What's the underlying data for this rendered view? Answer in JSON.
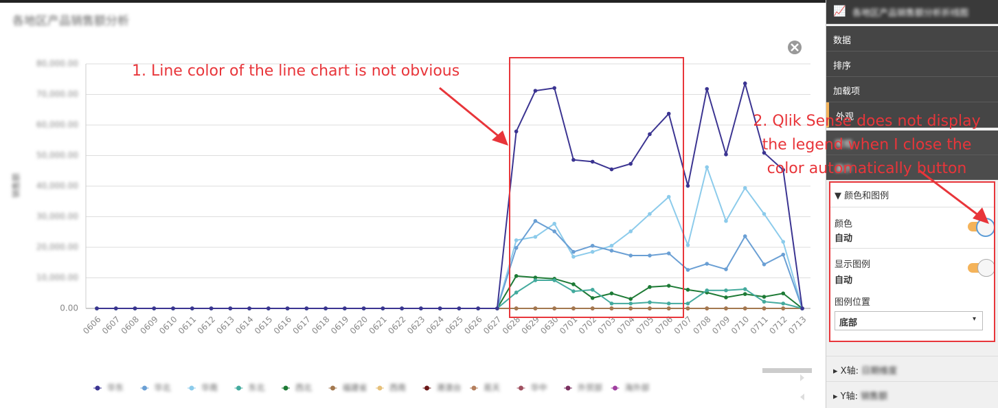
{
  "chart_data": {
    "type": "line",
    "title": "各地区产品销售额分析",
    "y_label": "销售额",
    "categories": [
      "0606",
      "0607",
      "0608",
      "0609",
      "0610",
      "0611",
      "0612",
      "0613",
      "0614",
      "0615",
      "0616",
      "0617",
      "0618",
      "0619",
      "0620",
      "0621",
      "0622",
      "0623",
      "0624",
      "0625",
      "0626",
      "0627",
      "0628",
      "0629",
      "0630",
      "0701",
      "0702",
      "0703",
      "0704",
      "0705",
      "0706",
      "0707",
      "0708",
      "0709",
      "0710",
      "0711",
      "0712",
      "0713"
    ],
    "ylim": [
      0,
      80000
    ],
    "yticks": [
      {
        "value": 0,
        "label": "0.00"
      },
      {
        "value": 10000,
        "label": "10,000.00"
      },
      {
        "value": 20000,
        "label": "20,000.00"
      },
      {
        "value": 30000,
        "label": "30,000.00"
      },
      {
        "value": 40000,
        "label": "40,000.00"
      },
      {
        "value": 50000,
        "label": "50,000.00"
      },
      {
        "value": 60000,
        "label": "60,000.00"
      },
      {
        "value": 70000,
        "label": "70,000.00"
      },
      {
        "value": 80000,
        "label": "80,000.00"
      }
    ],
    "grid": true,
    "series": [
      {
        "name": "华东",
        "color": "#3b3491",
        "values": [
          0,
          0,
          0,
          0,
          0,
          0,
          0,
          0,
          0,
          0,
          0,
          0,
          0,
          0,
          0,
          0,
          0,
          0,
          0,
          0,
          0,
          0,
          57900,
          71200,
          72100,
          48600,
          48000,
          45500,
          47300,
          57000,
          63700,
          40100,
          71800,
          50400,
          73600,
          50900,
          45300,
          0
        ]
      },
      {
        "name": "华北",
        "color": "#6a9fd4",
        "values": [
          0,
          0,
          0,
          0,
          0,
          0,
          0,
          0,
          0,
          0,
          0,
          0,
          0,
          0,
          0,
          0,
          0,
          0,
          0,
          0,
          0,
          0,
          19800,
          28600,
          25200,
          18500,
          20500,
          18900,
          17300,
          17300,
          18000,
          12600,
          14600,
          12800,
          23600,
          14400,
          17600,
          0
        ]
      },
      {
        "name": "华南",
        "color": "#8ccbeb",
        "values": [
          0,
          0,
          0,
          0,
          0,
          0,
          0,
          0,
          0,
          0,
          0,
          0,
          0,
          0,
          0,
          0,
          0,
          0,
          0,
          0,
          0,
          0,
          22300,
          23400,
          27700,
          16900,
          18500,
          20500,
          25200,
          30900,
          36500,
          20700,
          46200,
          28600,
          39400,
          30900,
          21800,
          0
        ]
      },
      {
        "name": "东北",
        "color": "#43aa9d",
        "values": [
          0,
          0,
          0,
          0,
          0,
          0,
          0,
          0,
          0,
          0,
          0,
          0,
          0,
          0,
          0,
          0,
          0,
          0,
          0,
          0,
          0,
          0,
          5200,
          9200,
          9200,
          5600,
          6100,
          1600,
          1600,
          2000,
          1600,
          1600,
          5900,
          5900,
          6300,
          2200,
          1600,
          0
        ]
      },
      {
        "name": "西北",
        "color": "#1d7a35",
        "values": [
          0,
          0,
          0,
          0,
          0,
          0,
          0,
          0,
          0,
          0,
          0,
          0,
          0,
          0,
          0,
          0,
          0,
          0,
          0,
          0,
          0,
          0,
          10600,
          10100,
          9700,
          7900,
          3400,
          4900,
          3100,
          7000,
          7400,
          6100,
          5200,
          3600,
          4700,
          3800,
          4900,
          0
        ]
      },
      {
        "name": "福建省",
        "color": "#a3784f",
        "values": [
          0,
          0,
          0,
          0,
          0,
          0,
          0,
          0,
          0,
          0,
          0,
          0,
          0,
          0,
          0,
          0,
          0,
          0,
          0,
          0,
          0,
          0,
          0,
          0,
          0,
          0,
          0,
          0,
          0,
          0,
          0,
          0,
          0,
          0,
          0,
          0,
          0,
          0
        ]
      },
      {
        "name": "西南",
        "color": "#e6c07a",
        "values": [
          0,
          0,
          0,
          0,
          0,
          0,
          0,
          0,
          0,
          0,
          0,
          0,
          0,
          0,
          0,
          0,
          0,
          0,
          0,
          0,
          0,
          0,
          0,
          0,
          0,
          0,
          0,
          0,
          0,
          0,
          0,
          0,
          0,
          0,
          0,
          0,
          0,
          0
        ]
      },
      {
        "name": "港澳台",
        "color": "#6b1818",
        "values": [
          0,
          0,
          0,
          0,
          0,
          0,
          0,
          0,
          0,
          0,
          0,
          0,
          0,
          0,
          0,
          0,
          0,
          0,
          0,
          0,
          0,
          0,
          0,
          0,
          0,
          0,
          0,
          0,
          0,
          0,
          0,
          0,
          0,
          0,
          0,
          0,
          0,
          0
        ]
      },
      {
        "name": "易天",
        "color": "#b5805e",
        "values": [
          0,
          0,
          0,
          0,
          0,
          0,
          0,
          0,
          0,
          0,
          0,
          0,
          0,
          0,
          0,
          0,
          0,
          0,
          0,
          0,
          0,
          0,
          0,
          0,
          0,
          0,
          0,
          0,
          0,
          0,
          0,
          0,
          0,
          0,
          0,
          0,
          0,
          0
        ]
      },
      {
        "name": "华中",
        "color": "#a05060",
        "values": [
          0,
          0,
          0,
          0,
          0,
          0,
          0,
          0,
          0,
          0,
          0,
          0,
          0,
          0,
          0,
          0,
          0,
          0,
          0,
          0,
          0,
          0,
          0,
          0,
          0,
          0,
          0,
          0,
          0,
          0,
          0,
          0,
          0,
          0,
          0,
          0,
          0,
          0
        ]
      },
      {
        "name": "外贸部",
        "color": "#7a3060",
        "values": [
          0,
          0,
          0,
          0,
          0,
          0,
          0,
          0,
          0,
          0,
          0,
          0,
          0,
          0,
          0,
          0,
          0,
          0,
          0,
          0,
          0,
          0,
          0,
          0,
          0,
          0,
          0,
          0,
          0,
          0,
          0,
          0,
          0,
          0,
          0,
          0,
          0,
          0
        ]
      },
      {
        "name": "海外部",
        "color": "#a040a0",
        "values": [
          0,
          0,
          0,
          0,
          0,
          0,
          0,
          0,
          0,
          0,
          0,
          0,
          0,
          0,
          0,
          0,
          0,
          0,
          0,
          0,
          0,
          0,
          0,
          0,
          0,
          0,
          0,
          0,
          0,
          0,
          0,
          0,
          0,
          0,
          0,
          0,
          0,
          0
        ]
      }
    ]
  },
  "annotations": {
    "note1": "1. Line color of the line chart is not obvious",
    "note2": [
      "2. Qlik Sense does not display",
      "the legend when I close the",
      "color automatically button"
    ]
  },
  "panel": {
    "header": "各地区产品销售额分析折线图",
    "menu": [
      "数据",
      "排序",
      "加载项",
      "外观"
    ],
    "subitems": [
      "常规",
      "演示"
    ],
    "section": "颜色和图例",
    "color_label": "颜色",
    "color_value": "自动",
    "legend_label": "显示图例",
    "legend_value": "自动",
    "position_label": "图例位置",
    "position_value": "底部",
    "x_axis": "X轴:",
    "x_axis_field": "日期维度",
    "y_axis": "Y轴:",
    "y_axis_field": "销售额"
  }
}
